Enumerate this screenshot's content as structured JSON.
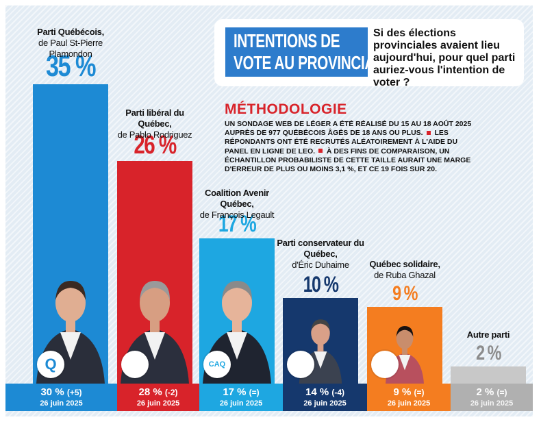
{
  "chart_data": {
    "type": "bar",
    "categories": [
      "Parti Québécois",
      "Parti libéral du Québec",
      "Coalition Avenir Québec",
      "Parti conservateur du Québec",
      "Québec solidaire",
      "Autre parti"
    ],
    "series": [
      {
        "values": [
          35,
          26,
          17,
          10,
          9,
          2
        ]
      }
    ],
    "ylim": [
      0,
      35
    ]
  },
  "colors": {
    "pq": "#1d8ad4",
    "plq": "#d8232a",
    "caq": "#1ea7e1",
    "pcq": "#15386d",
    "qs": "#f47d20",
    "other": "#c8c8c8"
  },
  "title": {
    "line1": "INTENTIONS DE",
    "line2": "VOTE AU PROVINCIAL",
    "question": "Si des élections provinciales avaient lieu aujourd'hui, pour quel parti auriez-vous l'intention de voter ?"
  },
  "methodology": {
    "heading": "MÉTHODOLOGIE",
    "part1": "UN SONDAGE WEB DE LÉGER A ÉTÉ RÉALISÉ DU 15 AU 18 AOÛT 2025 AUPRÈS DE 977 QUÉBÉCOIS ÂGÉS DE 18 ANS OU PLUS.",
    "part2": "LES RÉPONDANTS ONT ÉTÉ RECRUTÉS ALÉATOIREMENT À L'AIDE DU PANEL EN LIGNE DE LEO.",
    "part3": "À DES FINS DE COMPARAISON, UN ÉCHANTILLON PROBABILISTE DE CETTE TAILLE AURAIT UNE MARGE D'ERREUR DE PLUS OU MOINS 3,1 %, ET CE 19 FOIS SUR 20."
  },
  "parties": [
    {
      "name": "Parti Québécois,",
      "leader": "de Paul St-Pierre Plamondon",
      "pct": "35 %",
      "prev": "30 %",
      "change": "(+5)",
      "date": "26 juin 2025",
      "logo": "pq-logo",
      "logo_text": "Q"
    },
    {
      "name": "Parti libéral du Québec,",
      "leader": "de Pablo Rodriguez",
      "pct": "26 %",
      "prev": "28 %",
      "change": "(-2)",
      "date": "26 juin 2025",
      "logo": "plq-logo",
      "logo_text": ""
    },
    {
      "name": "Coalition Avenir Québec,",
      "leader": "de François Legault",
      "pct": "17 %",
      "prev": "17 %",
      "change": "(=)",
      "date": "26 juin 2025",
      "logo": "caq-logo",
      "logo_text": "CAQ"
    },
    {
      "name": "Parti conservateur du Québec,",
      "leader": "d'Éric Duhaime",
      "pct": "10 %",
      "prev": "14 %",
      "change": "(-4)",
      "date": "26 juin 2025",
      "logo": "pcq-logo",
      "logo_text": ""
    },
    {
      "name": "Québec solidaire,",
      "leader": "de Ruba Ghazal",
      "pct": "9 %",
      "prev": "9 %",
      "change": "(=)",
      "date": "26 juin 2025",
      "logo": "qs-logo",
      "logo_text": ""
    },
    {
      "name": "Autre parti",
      "leader": "",
      "pct": "2 %",
      "prev": "2 %",
      "change": "(=)",
      "date": "26 juin 2025",
      "logo": "",
      "logo_text": ""
    }
  ]
}
